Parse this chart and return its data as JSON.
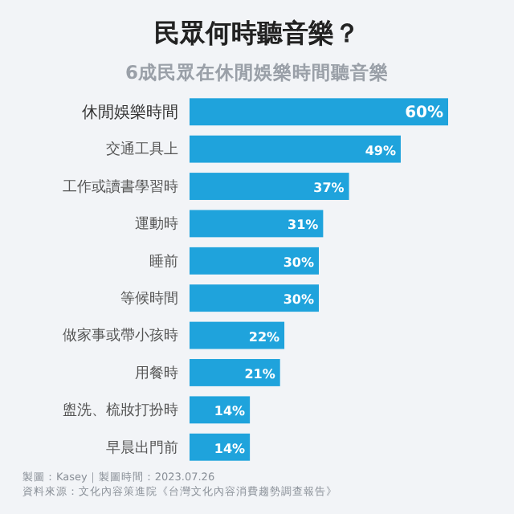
{
  "chart_data": {
    "type": "bar",
    "orientation": "horizontal",
    "title": "民眾何時聽音樂？",
    "subtitle": "6成民眾在休閒娛樂時間聽音樂",
    "categories": [
      "休閒娛樂時間",
      "交通工具上",
      "工作或讀書學習時",
      "運動時",
      "睡前",
      "等候時間",
      "做家事或帶小孩時",
      "用餐時",
      "盥洗、梳妝打扮時",
      "早晨出門前"
    ],
    "values": [
      60,
      49,
      37,
      31,
      30,
      30,
      22,
      21,
      14,
      14
    ],
    "value_labels": [
      "60%",
      "49%",
      "37%",
      "31%",
      "30%",
      "30%",
      "22%",
      "21%",
      "14%",
      "14%"
    ],
    "color": "#1fa3dc",
    "annotations": [
      "製圖：Kasey｜製圖時間：2023.07.26",
      "資料來源：文化內容策進院《台灣文化內容消費趨勢調查報告》"
    ]
  }
}
